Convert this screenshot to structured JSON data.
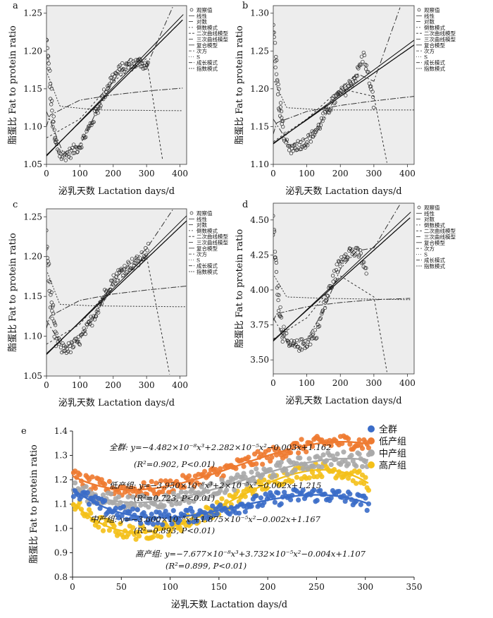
{
  "chart_data": [
    {
      "panel": "a",
      "type": "scatter",
      "xlabel": "泌乳天数  Lactation days/d",
      "ylabel": "脂蛋比  Fat to protein ratio",
      "xlim": [
        0,
        420
      ],
      "ylim": [
        1.05,
        1.26
      ],
      "xticks": [
        "0",
        "100",
        "200",
        "300",
        "400"
      ],
      "yticks": [
        "1.05",
        "1.10",
        "1.15",
        "1.20",
        "1.25"
      ],
      "legend": [
        "观察值",
        "线性",
        "对数",
        "倒数模式",
        "二次曲线模型",
        "三次曲线模型",
        "复合模型",
        "次方",
        "S",
        "成长模式",
        "指数模式"
      ],
      "legend_placement": "top-right outside",
      "observed": {
        "x": [
          0,
          10,
          25,
          45,
          70,
          100,
          130,
          160,
          190,
          220,
          250,
          280,
          305
        ],
        "y": [
          1.21,
          1.16,
          1.08,
          1.06,
          1.065,
          1.075,
          1.1,
          1.13,
          1.16,
          1.175,
          1.182,
          1.185,
          1.18
        ]
      },
      "fits": {
        "linear": {
          "x": [
            0,
            410
          ],
          "y": [
            1.062,
            1.242
          ]
        },
        "logarithmic": {
          "x": [
            0,
            10,
            100,
            200,
            300,
            410
          ],
          "y": [
            1.1,
            1.115,
            1.135,
            1.142,
            1.147,
            1.151
          ]
        },
        "inverse": {
          "x": [
            3,
            40,
            150,
            410
          ],
          "y": [
            1.17,
            1.127,
            1.122,
            1.121
          ]
        },
        "quadratic": {
          "x": [
            0,
            100,
            200,
            300,
            350
          ],
          "y": [
            1.085,
            1.11,
            1.16,
            1.19,
            1.05
          ]
        },
        "cubic": {
          "x": [
            0,
            50,
            100,
            150,
            200,
            250,
            300,
            380
          ],
          "y": [
            1.12,
            1.065,
            1.075,
            1.12,
            1.16,
            1.19,
            1.18,
            1.26
          ]
        }
      }
    },
    {
      "panel": "b",
      "type": "scatter",
      "xlabel": "泌乳天数  Lactation days/d",
      "ylabel": "脂蛋比  Fat to protein ratio",
      "xlim": [
        0,
        420
      ],
      "ylim": [
        1.1,
        1.31
      ],
      "xticks": [
        "0",
        "100",
        "200",
        "300",
        "400"
      ],
      "yticks": [
        "1.10",
        "1.15",
        "1.20",
        "1.25",
        "1.30"
      ],
      "legend": [
        "观察值",
        "线性",
        "对数",
        "倒数模式",
        "二次曲线模型",
        "三次曲线模型",
        "复合模型",
        "次方",
        "S",
        "成长模式",
        "指数模式"
      ],
      "legend_placement": "top-right outside",
      "observed": {
        "x": [
          0,
          10,
          25,
          45,
          70,
          100,
          130,
          160,
          190,
          220,
          250,
          270,
          300
        ],
        "y": [
          1.28,
          1.22,
          1.15,
          1.12,
          1.125,
          1.13,
          1.145,
          1.17,
          1.19,
          1.2,
          1.22,
          1.245,
          1.18
        ]
      },
      "fits": {
        "linear": {
          "x": [
            0,
            420
          ],
          "y": [
            1.128,
            1.258
          ]
        },
        "logarithmic": {
          "x": [
            0,
            10,
            100,
            200,
            300,
            420
          ],
          "y": [
            1.14,
            1.155,
            1.17,
            1.178,
            1.184,
            1.19
          ]
        },
        "inverse": {
          "x": [
            3,
            40,
            150,
            420
          ],
          "y": [
            1.21,
            1.175,
            1.172,
            1.172
          ]
        },
        "quadratic": {
          "x": [
            0,
            100,
            200,
            300,
            340
          ],
          "y": [
            1.13,
            1.16,
            1.2,
            1.19,
            1.1
          ]
        },
        "cubic": {
          "x": [
            0,
            50,
            100,
            150,
            200,
            250,
            300,
            380
          ],
          "y": [
            1.16,
            1.125,
            1.135,
            1.16,
            1.2,
            1.22,
            1.21,
            1.31
          ]
        }
      }
    },
    {
      "panel": "c",
      "type": "scatter",
      "xlabel": "泌乳天数  Lactation days/d",
      "ylabel": "脂蛋比  Fat to protein ratio",
      "xlim": [
        0,
        420
      ],
      "ylim": [
        1.05,
        1.26
      ],
      "xticks": [
        "0",
        "100",
        "200",
        "300",
        "400"
      ],
      "yticks": [
        "1.05",
        "1.10",
        "1.15",
        "1.20",
        "1.25"
      ],
      "legend": [
        "观察值",
        "线性",
        "对数",
        "倒数模式",
        "二次曲线模型",
        "三次曲线模型",
        "复合模型",
        "次方",
        "S",
        "成长模式",
        "指数模式"
      ],
      "legend_placement": "top-right outside",
      "observed": {
        "x": [
          0,
          10,
          25,
          45,
          70,
          100,
          130,
          160,
          190,
          220,
          250,
          280,
          305
        ],
        "y": [
          1.22,
          1.16,
          1.1,
          1.085,
          1.085,
          1.095,
          1.115,
          1.14,
          1.165,
          1.18,
          1.19,
          1.195,
          1.21
        ]
      },
      "fits": {
        "linear": {
          "x": [
            0,
            420
          ],
          "y": [
            1.078,
            1.245
          ]
        },
        "logarithmic": {
          "x": [
            0,
            10,
            100,
            200,
            300,
            420
          ],
          "y": [
            1.11,
            1.125,
            1.145,
            1.153,
            1.158,
            1.163
          ]
        },
        "inverse": {
          "x": [
            3,
            40,
            150,
            420
          ],
          "y": [
            1.18,
            1.14,
            1.138,
            1.137
          ]
        },
        "quadratic": {
          "x": [
            0,
            100,
            200,
            300,
            370
          ],
          "y": [
            1.09,
            1.115,
            1.165,
            1.2,
            1.05
          ]
        },
        "cubic": {
          "x": [
            0,
            50,
            100,
            150,
            200,
            250,
            300,
            380
          ],
          "y": [
            1.12,
            1.085,
            1.095,
            1.13,
            1.17,
            1.19,
            1.21,
            1.26
          ]
        }
      }
    },
    {
      "panel": "d",
      "type": "scatter",
      "xlabel": "泌乳天数  Lactation days/d",
      "ylabel": "脂蛋比  Fat to protein ratio",
      "xlim": [
        0,
        420
      ],
      "ylim": [
        3.4,
        4.62
      ],
      "xticks": [
        "0",
        "100",
        "200",
        "300",
        "400"
      ],
      "yticks": [
        "3.50",
        "3.75",
        "4.00",
        "4.25",
        "4.50"
      ],
      "legend": [
        "观察值",
        "线性",
        "对数",
        "倒数模式",
        "二次曲线模型",
        "三次曲线模型",
        "复合模型",
        "次方",
        "S",
        "成长模式",
        "指数模式"
      ],
      "legend_placement": "top-right outside",
      "observed": {
        "x": [
          0,
          10,
          25,
          45,
          70,
          100,
          130,
          160,
          190,
          210,
          230,
          260,
          280
        ],
        "y": [
          4.45,
          4.1,
          3.75,
          3.6,
          3.6,
          3.62,
          3.7,
          3.95,
          4.15,
          4.25,
          4.28,
          4.25,
          4.1
        ]
      },
      "fits": {
        "linear": {
          "x": [
            0,
            410
          ],
          "y": [
            3.64,
            4.52
          ]
        },
        "logarithmic": {
          "x": [
            0,
            10,
            100,
            200,
            300,
            410
          ],
          "y": [
            3.78,
            3.83,
            3.88,
            3.91,
            3.93,
            3.94
          ]
        },
        "inverse": {
          "x": [
            3,
            40,
            150,
            410
          ],
          "y": [
            4.1,
            3.95,
            3.94,
            3.93
          ]
        },
        "quadratic": {
          "x": [
            0,
            100,
            200,
            300,
            340
          ],
          "y": [
            3.65,
            3.8,
            4.1,
            3.95,
            3.4
          ]
        },
        "cubic": {
          "x": [
            0,
            50,
            100,
            150,
            200,
            250,
            300,
            380
          ],
          "y": [
            3.8,
            3.6,
            3.65,
            3.85,
            4.15,
            4.28,
            4.3,
            4.62
          ]
        }
      }
    },
    {
      "panel": "e",
      "type": "scatter",
      "xlabel": "泌乳天数  Lactation days/d",
      "ylabel": "脂蛋比  Fat to protein ratio",
      "xlim": [
        0,
        350
      ],
      "ylim": [
        0.8,
        1.4
      ],
      "xticks": [
        "0",
        "50",
        "100",
        "150",
        "200",
        "250",
        "300",
        "350"
      ],
      "yticks": [
        "0.8",
        "0.9",
        "1.0",
        "1.1",
        "1.2",
        "1.3",
        "1.4"
      ],
      "legend_placement": "top-right",
      "series": [
        {
          "name": "全群",
          "color": "#3a6cc8",
          "a": -4.482e-08,
          "b": 2.282e-05,
          "c": -0.003,
          "d": 1.162
        },
        {
          "name": "低产组",
          "color": "#ee7a30",
          "a": -3.95e-08,
          "b": 2e-05,
          "c": -0.002,
          "d": 1.215
        },
        {
          "name": "中产组",
          "color": "#a9a9a9",
          "a": -3.6e-08,
          "b": 1.875e-05,
          "c": -0.002,
          "d": 1.167
        },
        {
          "name": "高产组",
          "color": "#f4c018",
          "a": -7.677e-08,
          "b": 3.732e-05,
          "c": -0.004,
          "d": 1.107
        }
      ],
      "equations": [
        {
          "line1": "全群: y=−4.482×10⁻⁸x³+2.282×10⁻⁵x²−0.003x+1.162",
          "line2": "(R²=0.902, P<0.01)"
        },
        {
          "line1": "低产组: y=−3.950×10⁻⁸x³+2×10⁻⁵x²−0.002x+1.215",
          "line2": "(R²=0.723, P<0.01)"
        },
        {
          "line1": "中产组: y=−3.600×10⁻⁸x³+1.875×10⁻⁵x²−0.002x+1.167",
          "line2": "(R²=0.893, P<0.01)"
        },
        {
          "line1": "高产组: y=−7.677×10⁻⁸x³+3.732×10⁻⁵x²−0.004x+1.107",
          "line2": "(R²=0.899, P<0.01)"
        }
      ]
    }
  ]
}
